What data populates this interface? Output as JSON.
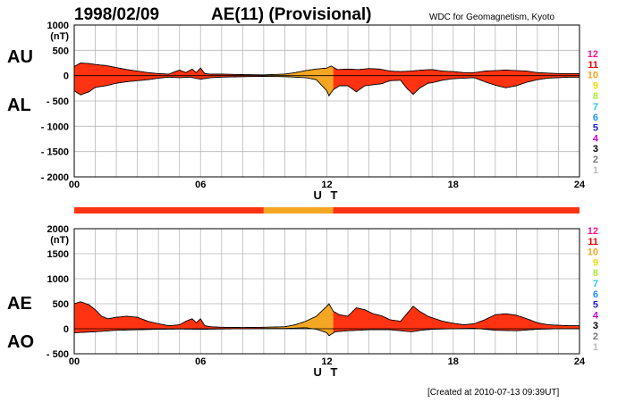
{
  "header": {
    "date": "1998/02/09",
    "title": "AE(11) (Provisional)",
    "source": "WDC for Geomagnetism, Kyoto"
  },
  "footer": {
    "created": "[Created at 2010-07-13 09:39UT]"
  },
  "colors": {
    "red": "#ff3311",
    "orange": "#f5a623"
  },
  "chart_data": [
    {
      "type": "area",
      "series": [
        {
          "name": "AU"
        },
        {
          "name": "AL"
        }
      ],
      "series_labels": [
        "AU",
        "AL"
      ],
      "yunit": "(nT)",
      "ylim": [
        -2000,
        1000
      ],
      "yticks": [
        1000,
        500,
        0,
        -500,
        -1000,
        -1500,
        -2000
      ],
      "ytick_labels": [
        "1000",
        "500",
        "0",
        "- 500",
        "- 1000",
        "- 1500",
        "- 2000"
      ],
      "xlim": [
        0,
        24
      ],
      "xticks": [
        0,
        6,
        12,
        18,
        24
      ],
      "xtick_labels": [
        "00",
        "06",
        "12",
        "18",
        "24"
      ],
      "xlabel": "U T",
      "grid": true,
      "legend_entries": [
        "12",
        "11",
        "10",
        "9",
        "8",
        "7",
        "6",
        "5",
        "4",
        "3",
        "2",
        "1"
      ],
      "legend_colors": [
        "#ff1493",
        "#ee0000",
        "#f5a623",
        "#eedd00",
        "#aaee33",
        "#22ccee",
        "#1e90ff",
        "#2222cc",
        "#cc00cc",
        "#000000",
        "#777777",
        "#bbbbbb"
      ],
      "legend_placement": "right",
      "au": [
        [
          0,
          180
        ],
        [
          0.3,
          250
        ],
        [
          0.7,
          240
        ],
        [
          1,
          220
        ],
        [
          1.5,
          200
        ],
        [
          2,
          160
        ],
        [
          2.5,
          120
        ],
        [
          3,
          90
        ],
        [
          3.5,
          60
        ],
        [
          4,
          40
        ],
        [
          4.5,
          30
        ],
        [
          4.8,
          80
        ],
        [
          5,
          110
        ],
        [
          5.3,
          60
        ],
        [
          5.6,
          130
        ],
        [
          5.8,
          60
        ],
        [
          6,
          150
        ],
        [
          6.2,
          40
        ],
        [
          6.5,
          30
        ],
        [
          7,
          30
        ],
        [
          8,
          20
        ],
        [
          9,
          15
        ],
        [
          10,
          30
        ],
        [
          10.5,
          60
        ],
        [
          11,
          100
        ],
        [
          11.5,
          130
        ],
        [
          12,
          150
        ],
        [
          12.2,
          190
        ],
        [
          12.5,
          120
        ],
        [
          13,
          130
        ],
        [
          13.5,
          120
        ],
        [
          14,
          140
        ],
        [
          14.5,
          130
        ],
        [
          15,
          90
        ],
        [
          15.5,
          80
        ],
        [
          16,
          90
        ],
        [
          16.5,
          110
        ],
        [
          17,
          120
        ],
        [
          17.5,
          90
        ],
        [
          18,
          80
        ],
        [
          18.5,
          60
        ],
        [
          19,
          60
        ],
        [
          19.5,
          90
        ],
        [
          20,
          100
        ],
        [
          20.5,
          110
        ],
        [
          21,
          100
        ],
        [
          21.5,
          90
        ],
        [
          22,
          60
        ],
        [
          22.5,
          50
        ],
        [
          23,
          40
        ],
        [
          23.5,
          40
        ],
        [
          24,
          40
        ]
      ],
      "al": [
        [
          0,
          -300
        ],
        [
          0.3,
          -380
        ],
        [
          0.7,
          -320
        ],
        [
          1,
          -230
        ],
        [
          1.5,
          -200
        ],
        [
          2,
          -150
        ],
        [
          2.5,
          -120
        ],
        [
          3,
          -100
        ],
        [
          3.5,
          -80
        ],
        [
          4,
          -50
        ],
        [
          4.5,
          -30
        ],
        [
          5,
          -40
        ],
        [
          5.5,
          -30
        ],
        [
          6,
          -70
        ],
        [
          6.5,
          -40
        ],
        [
          7,
          -30
        ],
        [
          8,
          -20
        ],
        [
          9,
          -15
        ],
        [
          10,
          -20
        ],
        [
          10.5,
          -30
        ],
        [
          11,
          -40
        ],
        [
          11.5,
          -80
        ],
        [
          12,
          -300
        ],
        [
          12.1,
          -400
        ],
        [
          12.3,
          -280
        ],
        [
          12.6,
          -200
        ],
        [
          13,
          -200
        ],
        [
          13.4,
          -320
        ],
        [
          13.8,
          -200
        ],
        [
          14.2,
          -180
        ],
        [
          14.6,
          -160
        ],
        [
          15,
          -100
        ],
        [
          15.5,
          -90
        ],
        [
          15.8,
          -250
        ],
        [
          16.1,
          -370
        ],
        [
          16.4,
          -250
        ],
        [
          16.8,
          -150
        ],
        [
          17,
          -140
        ],
        [
          17.5,
          -90
        ],
        [
          18,
          -60
        ],
        [
          18.5,
          -50
        ],
        [
          19,
          -40
        ],
        [
          19.5,
          -120
        ],
        [
          20,
          -190
        ],
        [
          20.5,
          -240
        ],
        [
          21,
          -200
        ],
        [
          21.5,
          -130
        ],
        [
          22,
          -80
        ],
        [
          22.5,
          -50
        ],
        [
          23,
          -40
        ],
        [
          23.5,
          -30
        ],
        [
          24,
          -30
        ]
      ],
      "orange_segments": [
        [
          9,
          12.3
        ]
      ]
    },
    {
      "type": "area",
      "series": [
        {
          "name": "AE"
        },
        {
          "name": "AO"
        }
      ],
      "series_labels": [
        "AE",
        "AO"
      ],
      "yunit": "(nT)",
      "ylim": [
        -500,
        2000
      ],
      "yticks": [
        2000,
        1500,
        1000,
        500,
        0,
        -500
      ],
      "ytick_labels": [
        "2000",
        "1500",
        "1000",
        "500",
        "0",
        "- 500"
      ],
      "xlim": [
        0,
        24
      ],
      "xticks": [
        0,
        6,
        12,
        18,
        24
      ],
      "xtick_labels": [
        "00",
        "06",
        "12",
        "18",
        "24"
      ],
      "xlabel": "U T",
      "grid": true,
      "legend_entries": [
        "12",
        "11",
        "10",
        "9",
        "8",
        "7",
        "6",
        "5",
        "4",
        "3",
        "2",
        "1"
      ],
      "legend_colors": [
        "#ff1493",
        "#ee0000",
        "#f5a623",
        "#eedd00",
        "#aaee33",
        "#22ccee",
        "#1e90ff",
        "#2222cc",
        "#cc00cc",
        "#000000",
        "#777777",
        "#bbbbbb"
      ],
      "legend_placement": "right",
      "ae": [
        [
          0,
          500
        ],
        [
          0.3,
          540
        ],
        [
          0.7,
          480
        ],
        [
          1,
          380
        ],
        [
          1.3,
          250
        ],
        [
          1.6,
          200
        ],
        [
          2,
          230
        ],
        [
          2.5,
          250
        ],
        [
          3,
          230
        ],
        [
          3.5,
          150
        ],
        [
          4,
          100
        ],
        [
          4.5,
          60
        ],
        [
          5,
          80
        ],
        [
          5.3,
          150
        ],
        [
          5.6,
          200
        ],
        [
          5.8,
          120
        ],
        [
          6,
          200
        ],
        [
          6.2,
          60
        ],
        [
          6.5,
          40
        ],
        [
          7,
          30
        ],
        [
          8,
          25
        ],
        [
          9,
          30
        ],
        [
          10,
          40
        ],
        [
          10.5,
          80
        ],
        [
          11,
          150
        ],
        [
          11.5,
          250
        ],
        [
          12,
          450
        ],
        [
          12.1,
          500
        ],
        [
          12.3,
          350
        ],
        [
          12.6,
          280
        ],
        [
          13,
          250
        ],
        [
          13.4,
          420
        ],
        [
          13.8,
          380
        ],
        [
          14.2,
          300
        ],
        [
          14.6,
          260
        ],
        [
          15,
          180
        ],
        [
          15.5,
          150
        ],
        [
          15.8,
          300
        ],
        [
          16.1,
          450
        ],
        [
          16.4,
          350
        ],
        [
          16.8,
          250
        ],
        [
          17,
          220
        ],
        [
          17.5,
          150
        ],
        [
          18,
          110
        ],
        [
          18.5,
          80
        ],
        [
          19,
          100
        ],
        [
          19.5,
          180
        ],
        [
          20,
          280
        ],
        [
          20.5,
          300
        ],
        [
          21,
          270
        ],
        [
          21.5,
          200
        ],
        [
          22,
          120
        ],
        [
          22.5,
          80
        ],
        [
          23,
          70
        ],
        [
          23.5,
          60
        ],
        [
          24,
          60
        ]
      ],
      "ao": [
        [
          0,
          -80
        ],
        [
          1,
          -60
        ],
        [
          2,
          -30
        ],
        [
          3,
          -20
        ],
        [
          4,
          -10
        ],
        [
          5,
          -5
        ],
        [
          6,
          -10
        ],
        [
          7,
          -5
        ],
        [
          8,
          0
        ],
        [
          9,
          5
        ],
        [
          10,
          5
        ],
        [
          11,
          20
        ],
        [
          11.5,
          -10
        ],
        [
          12,
          -80
        ],
        [
          12.1,
          -140
        ],
        [
          12.4,
          -60
        ],
        [
          13,
          -40
        ],
        [
          14,
          -20
        ],
        [
          15,
          -20
        ],
        [
          16,
          -60
        ],
        [
          16.5,
          -30
        ],
        [
          17,
          -10
        ],
        [
          18,
          0
        ],
        [
          19,
          10
        ],
        [
          20,
          -30
        ],
        [
          21,
          -40
        ],
        [
          22,
          -10
        ],
        [
          23,
          0
        ],
        [
          24,
          0
        ]
      ],
      "orange_segments": [
        [
          9,
          12.3
        ]
      ]
    }
  ],
  "status_bar": {
    "segments": [
      {
        "from": 0,
        "to": 9,
        "color": "#ff3311"
      },
      {
        "from": 9,
        "to": 12.3,
        "color": "#f5a623"
      },
      {
        "from": 12.3,
        "to": 24,
        "color": "#ff3311"
      }
    ]
  }
}
